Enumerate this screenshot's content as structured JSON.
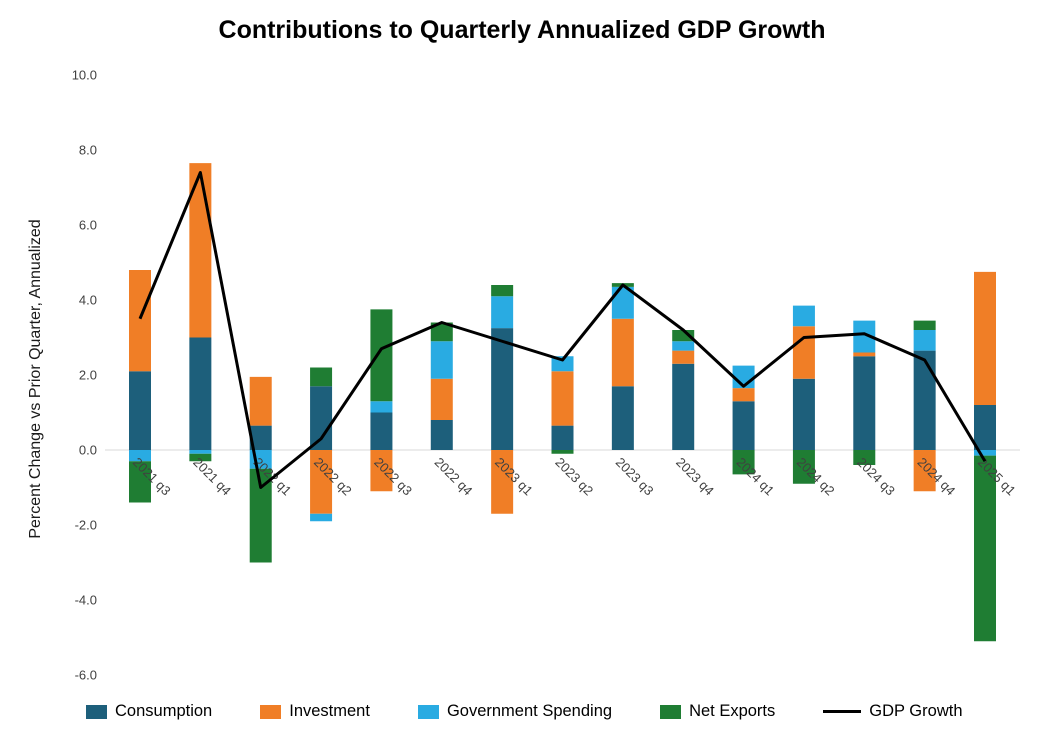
{
  "title": "Contributions to Quarterly Annualized GDP Growth",
  "chart_data": {
    "type": "bar",
    "stacked": true,
    "title": "Contributions to Quarterly Annualized GDP Growth",
    "xlabel": "",
    "ylabel": "Percent Change vs Prior Quarter, Annualized",
    "ylim": [
      -6.0,
      10.0
    ],
    "y_ticks": [
      10.0,
      8.0,
      6.0,
      4.0,
      2.0,
      0.0,
      -2.0,
      -4.0,
      -6.0
    ],
    "grid": "zero-line-only",
    "legend_position": "bottom",
    "categories": [
      "2021 q3",
      "2021 q4",
      "2022 q1",
      "2022 q2",
      "2022 q3",
      "2022 q4",
      "2023 q1",
      "2023 q2",
      "2023 q3",
      "2023 q4",
      "2024 q1",
      "2024 q2",
      "2024 q3",
      "2024 q4",
      "2025 q1"
    ],
    "series": [
      {
        "name": "Consumption",
        "type": "bar",
        "color": "#1D5F7B",
        "values": [
          2.1,
          3.0,
          0.65,
          1.7,
          1.0,
          0.8,
          3.25,
          0.65,
          1.7,
          2.3,
          1.3,
          1.9,
          2.5,
          2.65,
          1.2
        ]
      },
      {
        "name": "Investment",
        "type": "bar",
        "color": "#F07E26",
        "values": [
          2.7,
          4.65,
          1.3,
          -1.7,
          -1.1,
          1.1,
          -1.7,
          1.45,
          1.8,
          0.35,
          0.35,
          1.4,
          0.1,
          -1.1,
          3.55
        ]
      },
      {
        "name": "Government Spending",
        "type": "bar",
        "color": "#29ABE2",
        "values": [
          -0.3,
          -0.1,
          -0.5,
          -0.2,
          0.3,
          1.0,
          0.85,
          0.4,
          0.85,
          0.25,
          0.6,
          0.55,
          0.85,
          0.55,
          -0.15
        ]
      },
      {
        "name": "Net Exports",
        "type": "bar",
        "color": "#1F7D33",
        "values": [
          -1.1,
          -0.2,
          -2.5,
          0.5,
          2.45,
          0.5,
          0.3,
          -0.1,
          0.1,
          0.3,
          -0.65,
          -0.9,
          -0.4,
          0.25,
          -4.95
        ]
      },
      {
        "name": "GDP Growth",
        "type": "line",
        "color": "#000000",
        "values": [
          3.5,
          7.4,
          -1.0,
          0.3,
          2.7,
          3.4,
          2.9,
          2.4,
          4.4,
          3.2,
          1.7,
          3.0,
          3.1,
          2.4,
          -0.3
        ]
      }
    ],
    "colors": {
      "consumption": "#1D5F7B",
      "investment": "#F07E26",
      "government_spending": "#29ABE2",
      "net_exports": "#1F7D33",
      "gdp_growth_line": "#000000",
      "zero_gridline": "#d9d9d9"
    }
  }
}
